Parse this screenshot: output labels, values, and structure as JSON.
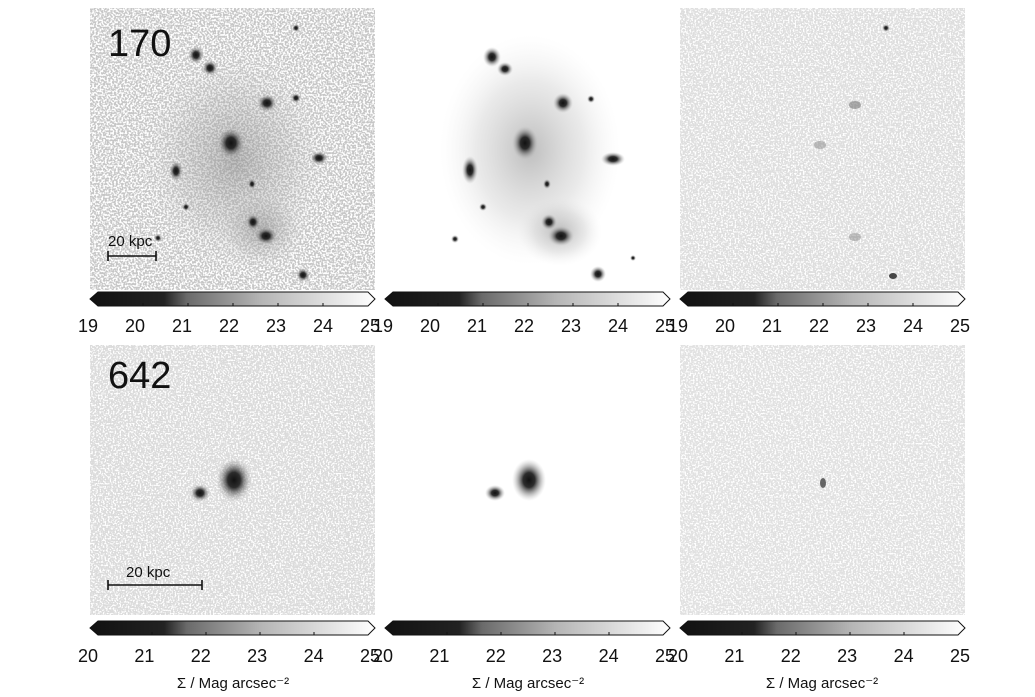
{
  "panel_rows": [
    {
      "id": "170",
      "scalebar_label": "20 kpc",
      "colorbar": {
        "ticks": [
          "19",
          "20",
          "21",
          "22",
          "23",
          "24",
          "25"
        ],
        "axis_label": ""
      }
    },
    {
      "id": "642",
      "scalebar_label": "20 kpc",
      "colorbar": {
        "ticks": [
          "20",
          "21",
          "22",
          "23",
          "24",
          "25"
        ],
        "axis_label": "Σ / Mag arcsec⁻²"
      }
    }
  ],
  "columns": [
    {
      "role": "observed-image"
    },
    {
      "role": "model-image"
    },
    {
      "role": "residual-image"
    }
  ],
  "colors": {
    "ink": "#111111",
    "background": "#ffffff"
  }
}
